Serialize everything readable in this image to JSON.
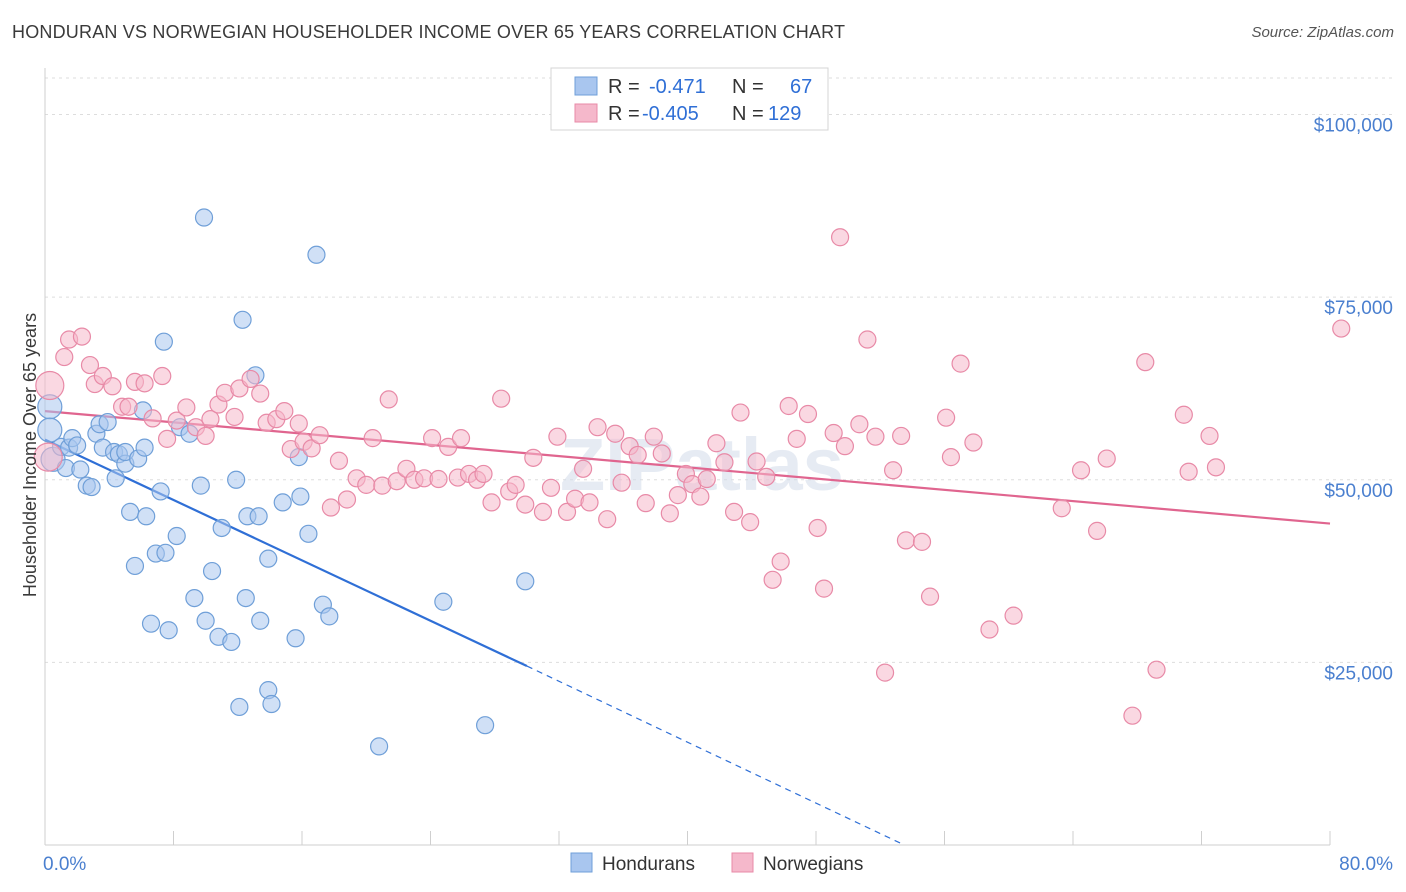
{
  "title": "HONDURAN VS NORWEGIAN HOUSEHOLDER INCOME OVER 65 YEARS CORRELATION CHART",
  "source": "Source: ZipAtlas.com",
  "watermark": "ZIPatlas",
  "legend_top": [
    {
      "r_label": "R =",
      "r_value": "-0.471",
      "n_label": "N =",
      "n_value": "67",
      "color": "#a9c6ef"
    },
    {
      "r_label": "R =",
      "r_value": "-0.405",
      "n_label": "N =",
      "n_value": "129",
      "color": "#f5b8cb"
    }
  ],
  "legend_bottom": [
    "Hondurans",
    "Norwegians"
  ],
  "colors": {
    "blue_fill": "#a9c6ef",
    "blue_stroke": "#6f9fd8",
    "blue_line": "#2f6fd6",
    "pink_fill": "#f5b8cb",
    "pink_stroke": "#e88aa7",
    "pink_line": "#e0658f",
    "tick_text": "#4a7fcf",
    "grid": "#dddddd"
  },
  "chart_data": {
    "type": "scatter",
    "title": "HONDURAN VS NORWEGIAN HOUSEHOLDER INCOME OVER 65 YEARS CORRELATION CHART",
    "xlabel": "",
    "ylabel": "Householder Income Over 65 years",
    "xlim": [
      0,
      80
    ],
    "ylim": [
      0,
      105000
    ],
    "x_tick_labels": [
      "0.0%",
      "80.0%"
    ],
    "y_ticks": [
      25000,
      50000,
      75000,
      100000
    ],
    "y_tick_labels": [
      "$25,000",
      "$50,000",
      "$75,000",
      "$100,000"
    ],
    "grid": true,
    "series": [
      {
        "name": "Hondurans",
        "trend": {
          "x0": 0,
          "y0": 55500,
          "x1": 30,
          "y1": 24500,
          "dashed_to_x": 53.5,
          "dashed_to_y": 0
        },
        "points": [
          [
            0.3,
            60000
          ],
          [
            0.3,
            56800
          ],
          [
            0.5,
            52800
          ],
          [
            1.0,
            54500
          ],
          [
            1.3,
            51600
          ],
          [
            1.5,
            54400
          ],
          [
            1.7,
            55700
          ],
          [
            2.0,
            54700
          ],
          [
            2.2,
            51400
          ],
          [
            2.6,
            49200
          ],
          [
            2.9,
            49000
          ],
          [
            3.2,
            56300
          ],
          [
            3.4,
            57600
          ],
          [
            3.6,
            54400
          ],
          [
            3.9,
            57900
          ],
          [
            4.3,
            53800
          ],
          [
            4.4,
            50200
          ],
          [
            4.6,
            53500
          ],
          [
            5.0,
            52200
          ],
          [
            5.0,
            53800
          ],
          [
            5.3,
            45600
          ],
          [
            5.6,
            38200
          ],
          [
            5.8,
            52900
          ],
          [
            6.1,
            59500
          ],
          [
            6.2,
            54400
          ],
          [
            6.3,
            45000
          ],
          [
            6.6,
            30300
          ],
          [
            6.9,
            39900
          ],
          [
            7.2,
            48400
          ],
          [
            7.4,
            68900
          ],
          [
            7.5,
            40000
          ],
          [
            7.7,
            29400
          ],
          [
            8.2,
            42300
          ],
          [
            8.4,
            57200
          ],
          [
            9.0,
            56300
          ],
          [
            9.3,
            33800
          ],
          [
            9.7,
            49200
          ],
          [
            9.9,
            85900
          ],
          [
            10.0,
            30700
          ],
          [
            10.4,
            37500
          ],
          [
            10.8,
            28500
          ],
          [
            11.0,
            43400
          ],
          [
            11.6,
            27800
          ],
          [
            11.9,
            50000
          ],
          [
            12.1,
            18900
          ],
          [
            12.3,
            71900
          ],
          [
            12.5,
            33800
          ],
          [
            12.6,
            45000
          ],
          [
            13.1,
            64300
          ],
          [
            13.3,
            45000
          ],
          [
            13.4,
            30700
          ],
          [
            13.9,
            39200
          ],
          [
            13.9,
            21200
          ],
          [
            14.1,
            19300
          ],
          [
            14.8,
            46900
          ],
          [
            15.6,
            28300
          ],
          [
            15.8,
            53100
          ],
          [
            15.9,
            47700
          ],
          [
            16.4,
            42600
          ],
          [
            16.9,
            80800
          ],
          [
            17.3,
            32900
          ],
          [
            17.7,
            31300
          ],
          [
            20.8,
            13500
          ],
          [
            24.8,
            33300
          ],
          [
            27.4,
            16400
          ],
          [
            29.9,
            36100
          ]
        ]
      },
      {
        "name": "Norwegians",
        "trend": {
          "x0": 0,
          "y0": 59400,
          "x1": 80,
          "y1": 44000
        },
        "points": [
          [
            0.2,
            53100
          ],
          [
            0.3,
            62900
          ],
          [
            1.2,
            66800
          ],
          [
            1.5,
            69200
          ],
          [
            2.3,
            69600
          ],
          [
            2.8,
            65700
          ],
          [
            3.1,
            63100
          ],
          [
            3.6,
            64200
          ],
          [
            4.2,
            62800
          ],
          [
            4.8,
            60000
          ],
          [
            5.2,
            60000
          ],
          [
            5.6,
            63400
          ],
          [
            6.2,
            63200
          ],
          [
            6.7,
            58400
          ],
          [
            7.3,
            64200
          ],
          [
            7.6,
            55600
          ],
          [
            8.2,
            58100
          ],
          [
            8.8,
            59900
          ],
          [
            9.4,
            57200
          ],
          [
            10.0,
            56000
          ],
          [
            10.3,
            58300
          ],
          [
            10.8,
            60300
          ],
          [
            11.2,
            61900
          ],
          [
            11.8,
            58600
          ],
          [
            12.1,
            62500
          ],
          [
            12.8,
            63800
          ],
          [
            13.4,
            61800
          ],
          [
            13.8,
            57800
          ],
          [
            14.4,
            58300
          ],
          [
            14.9,
            59400
          ],
          [
            15.3,
            54200
          ],
          [
            15.8,
            57700
          ],
          [
            16.1,
            55200
          ],
          [
            16.6,
            54300
          ],
          [
            17.1,
            56100
          ],
          [
            17.8,
            46200
          ],
          [
            18.3,
            52600
          ],
          [
            18.8,
            47300
          ],
          [
            19.4,
            50200
          ],
          [
            20.0,
            49300
          ],
          [
            20.4,
            55700
          ],
          [
            21.0,
            49200
          ],
          [
            21.4,
            61000
          ],
          [
            21.9,
            49800
          ],
          [
            22.5,
            51500
          ],
          [
            23.0,
            50000
          ],
          [
            23.6,
            50200
          ],
          [
            24.1,
            55700
          ],
          [
            24.5,
            50100
          ],
          [
            25.1,
            54500
          ],
          [
            25.7,
            50300
          ],
          [
            25.9,
            55700
          ],
          [
            26.4,
            50800
          ],
          [
            26.9,
            50000
          ],
          [
            27.3,
            50800
          ],
          [
            27.8,
            46900
          ],
          [
            28.4,
            61100
          ],
          [
            28.9,
            48400
          ],
          [
            29.3,
            49300
          ],
          [
            29.9,
            46600
          ],
          [
            30.4,
            53000
          ],
          [
            31.0,
            45600
          ],
          [
            31.5,
            48900
          ],
          [
            31.9,
            55900
          ],
          [
            32.5,
            45600
          ],
          [
            33.0,
            47400
          ],
          [
            33.5,
            51500
          ],
          [
            33.9,
            46900
          ],
          [
            34.4,
            57200
          ],
          [
            35.0,
            44600
          ],
          [
            35.5,
            56300
          ],
          [
            35.9,
            49600
          ],
          [
            36.4,
            54600
          ],
          [
            36.9,
            53400
          ],
          [
            37.4,
            46800
          ],
          [
            37.9,
            55900
          ],
          [
            38.4,
            53600
          ],
          [
            38.9,
            45400
          ],
          [
            39.4,
            47900
          ],
          [
            39.9,
            50800
          ],
          [
            40.3,
            49400
          ],
          [
            40.8,
            47700
          ],
          [
            41.2,
            50100
          ],
          [
            41.8,
            55000
          ],
          [
            42.3,
            52400
          ],
          [
            42.9,
            45600
          ],
          [
            43.3,
            59200
          ],
          [
            43.9,
            44200
          ],
          [
            44.3,
            52500
          ],
          [
            44.9,
            50400
          ],
          [
            45.3,
            36300
          ],
          [
            45.8,
            38800
          ],
          [
            46.3,
            60100
          ],
          [
            46.8,
            55600
          ],
          [
            47.5,
            59000
          ],
          [
            48.1,
            43400
          ],
          [
            48.5,
            35100
          ],
          [
            49.1,
            56400
          ],
          [
            49.5,
            83200
          ],
          [
            49.8,
            54600
          ],
          [
            50.7,
            57600
          ],
          [
            51.2,
            69200
          ],
          [
            51.7,
            55900
          ],
          [
            52.3,
            23600
          ],
          [
            52.8,
            51300
          ],
          [
            53.3,
            56000
          ],
          [
            53.6,
            41700
          ],
          [
            54.6,
            41500
          ],
          [
            55.1,
            34000
          ],
          [
            56.1,
            58500
          ],
          [
            56.4,
            53100
          ],
          [
            57.0,
            65900
          ],
          [
            57.8,
            55100
          ],
          [
            58.8,
            29500
          ],
          [
            60.3,
            31400
          ],
          [
            63.3,
            46100
          ],
          [
            64.5,
            51300
          ],
          [
            65.5,
            43000
          ],
          [
            66.1,
            52900
          ],
          [
            67.7,
            17700
          ],
          [
            68.5,
            66100
          ],
          [
            69.2,
            24000
          ],
          [
            70.9,
            58900
          ],
          [
            71.2,
            51100
          ],
          [
            72.5,
            56000
          ],
          [
            72.9,
            51700
          ],
          [
            80.7,
            70700
          ]
        ]
      }
    ]
  }
}
